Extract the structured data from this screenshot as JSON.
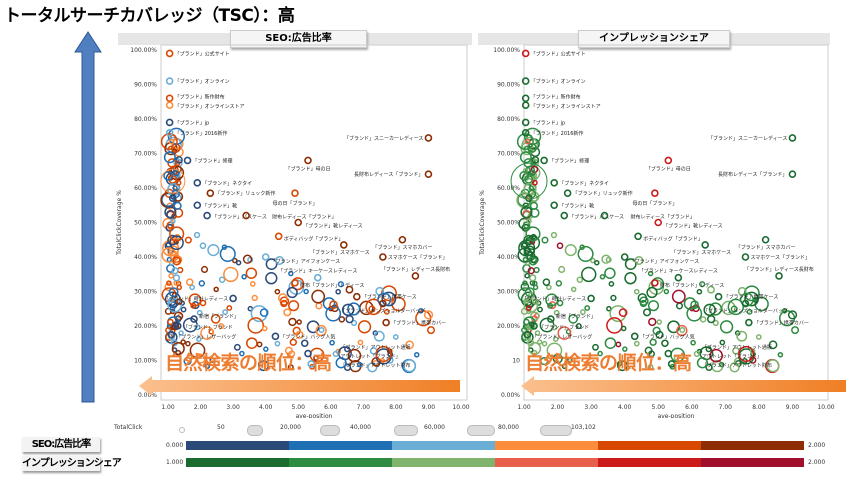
{
  "title": "トータルサーチカバレッジ（TSC）：高",
  "overlay_text": "自然検索の順位：高",
  "legend": {
    "size_title": "TotalClick",
    "size_values": [
      "50",
      "20,000",
      "40,000",
      "60,000",
      "80,000",
      "103,102"
    ],
    "seo_label": "SEO:広告比率",
    "seo_min": "0.000",
    "seo_max": "2.000",
    "seo_colors": [
      "#2b4a7a",
      "#1f6fb4",
      "#6aaed6",
      "#fd8d3c",
      "#d94801",
      "#8c2d04"
    ],
    "imp_label": "インプレッションシェア",
    "imp_min": "1.000",
    "imp_max": "2.000",
    "imp_colors": [
      "#1a6b30",
      "#2e8b42",
      "#7fb36e",
      "#e8604c",
      "#cc1a1a",
      "#a0102a"
    ]
  },
  "chart_data": [
    {
      "type": "scatter",
      "title": "SEO:広告比率",
      "xlabel": "ave-position",
      "ylabel": "TotalClickCoverage %",
      "xlim": [
        0.8,
        10.1
      ],
      "ylim": [
        0,
        100
      ],
      "xticks": [
        "1.00",
        "2.00",
        "3.00",
        "4.00",
        "5.00",
        "6.00",
        "7.00",
        "8.00",
        "9.00",
        "10.00"
      ],
      "yticks": [
        "0.00%",
        "10.00%",
        "20.00%",
        "30.00%",
        "40.00%",
        "50.00%",
        "60.00%",
        "70.00%",
        "80.00%",
        "90.00%",
        "100.00%"
      ],
      "points": [
        {
          "label": "「ブランド」公式サイト",
          "x": 1.05,
          "y": 99,
          "c": 4
        },
        {
          "label": "「ブランド」オンライン",
          "x": 1.05,
          "y": 91,
          "c": 2
        },
        {
          "label": "「ブランド」新作財布",
          "x": 1.05,
          "y": 86,
          "c": 4
        },
        {
          "label": "「ブランド」オンラインストア",
          "x": 1.05,
          "y": 84,
          "c": 3
        },
        {
          "label": "「ブランド」jp",
          "x": 1.05,
          "y": 79,
          "c": 0
        },
        {
          "label": "「ブランド」2016新作",
          "x": 1.05,
          "y": 76,
          "c": 2
        },
        {
          "label": "「ブランド」スニーカーレディース",
          "x": 9.0,
          "y": 74.5,
          "c": 5,
          "left": true
        },
        {
          "label": "「ブランド」修理",
          "x": 1.6,
          "y": 68,
          "c": 0
        },
        {
          "label": "「ブランド」母の日",
          "x": 5.3,
          "y": 68,
          "c": 5,
          "below": true
        },
        {
          "label": "長財布レディース「ブランド」",
          "x": 9.0,
          "y": 64,
          "c": 5,
          "left": true
        },
        {
          "label": "「ブランド」ネクタイ",
          "x": 1.9,
          "y": 61.5,
          "c": 0
        },
        {
          "label": "「ブランド」リュック新作",
          "x": 2.3,
          "y": 58.5,
          "c": 5
        },
        {
          "label": "母の日「ブランド」",
          "x": 4.9,
          "y": 58.5,
          "c": 4,
          "below": true
        },
        {
          "label": "「ブランド」靴",
          "x": 1.9,
          "y": 55,
          "c": 0,
          "above": true
        },
        {
          "label": "「ブランド」パスケース",
          "x": 2.2,
          "y": 52,
          "c": 0
        },
        {
          "label": "財布レディース「ブランド」",
          "x": 3.4,
          "y": 52,
          "c": 5
        },
        {
          "label": "「ブランド」靴レディース",
          "x": 5.0,
          "y": 50,
          "c": 5,
          "below": true
        },
        {
          "label": "ボディバッグ「ブランド」",
          "x": 4.4,
          "y": 46,
          "c": 4
        },
        {
          "label": "「ブランド」スマホカバー",
          "x": 8.2,
          "y": 45,
          "c": 5,
          "below": true
        },
        {
          "label": "「ブランド」スマホケース",
          "x": 6.4,
          "y": 43.5,
          "c": 5,
          "below": true
        },
        {
          "label": "「ブランド」アイフォンケース",
          "x": 4.0,
          "y": 40,
          "c": 2
        },
        {
          "label": "スマホケース「ブランド」",
          "x": 7.6,
          "y": 40,
          "c": 5
        },
        {
          "label": "「ブランド」レディース長財布",
          "x": 8.6,
          "y": 34.5,
          "c": 5,
          "above": true
        },
        {
          "label": "「ブランド」キーケースレディース",
          "x": 5.6,
          "y": 34,
          "c": 2,
          "above": true
        },
        {
          "label": "財布「ブランド」レディース",
          "x": 4.9,
          "y": 32.5,
          "c": 4
        },
        {
          "label": "「ブランド」携帯ケース",
          "x": 6.8,
          "y": 28.5,
          "c": 5
        },
        {
          "label": "「ブランド」時計レディース",
          "x": 3.0,
          "y": 28,
          "c": 0,
          "left": true
        },
        {
          "label": "「ブランド」メンズショルダーバッグ",
          "x": 7.6,
          "y": 26.5,
          "c": 5,
          "below": true
        },
        {
          "label": "新宿「ブランド」",
          "x": 1.8,
          "y": 22,
          "c": 0,
          "left": true
        },
        {
          "label": "「ブランド」ブランド",
          "x": 1.3,
          "y": 20,
          "c": 0
        },
        {
          "label": "「ブランド」携帯カバー",
          "x": 7.7,
          "y": 21,
          "c": 5
        },
        {
          "label": "「ブランド」レザーバッグ",
          "x": 1.1,
          "y": 17.5,
          "c": 0
        },
        {
          "label": "「ブランド」バッグ人気",
          "x": 4.3,
          "y": 17,
          "c": 0
        },
        {
          "label": "「ブランド」アウトレット通販",
          "x": 5.2,
          "y": 15,
          "c": 0,
          "below": true
        },
        {
          "label": "アウトレット「ブランド」",
          "x": 5.3,
          "y": 12,
          "c": 0,
          "left": true
        },
        {
          "label": "「ブランド」アウトレット財布",
          "x": 5.4,
          "y": 9,
          "c": 2
        }
      ]
    },
    {
      "type": "scatter",
      "title": "インプレッションシェア",
      "xlabel": "ave-position",
      "ylabel": "TotalClickCoverage %",
      "xlim": [
        0.9,
        10.1
      ],
      "ylim": [
        0,
        100
      ],
      "xticks": [
        "1.00",
        "2.00",
        "3.00",
        "4.00",
        "5.00",
        "6.00",
        "7.00",
        "8.00",
        "9.00",
        "10.00"
      ],
      "yticks": [
        "0.00%",
        "10",
        "20.00%",
        "30.00%",
        "40.00%",
        "50.00%",
        "60.00%",
        "70.00%",
        "80.00%",
        "90.00%",
        "100.00%"
      ],
      "same_points_as": 0
    }
  ]
}
